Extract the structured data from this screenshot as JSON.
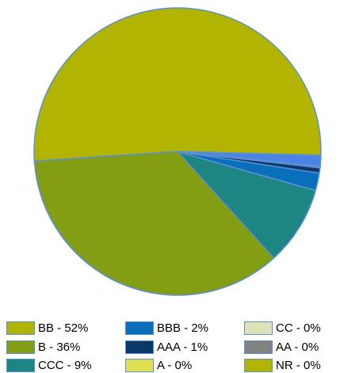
{
  "chart_data": {
    "type": "pie",
    "title": "",
    "legend_position": "bottom",
    "start_angle_deg": -1.5,
    "direction": "counterclockwise",
    "slice_border_color": "#5b8fd6",
    "slices": [
      {
        "label": "BB - 52%",
        "name": "BB",
        "value": 52,
        "color": "#b1b400"
      },
      {
        "label": "B - 36%",
        "name": "B",
        "value": 36,
        "color": "#849e14"
      },
      {
        "label": "CCC - 9%",
        "name": "CCC",
        "value": 9,
        "color": "#1d8582"
      },
      {
        "label": "BBB - 2%",
        "name": "BBB",
        "value": 2,
        "color": "#0a6fba"
      },
      {
        "label": "AAA - 1%",
        "name": "AAA",
        "value": 0.6,
        "color": "#0c3866"
      },
      {
        "label": "A - 0%",
        "name": "A",
        "value": 0.05,
        "color": "#dfdf52"
      },
      {
        "label": "CC - 0%",
        "name": "CC",
        "value": 0.05,
        "color": "#dfe2b5"
      },
      {
        "label": "AA - 0%",
        "name": "AA",
        "value": 0.05,
        "color": "#828282"
      },
      {
        "label": "NR - 0%",
        "name": "NR",
        "value": 0.05,
        "color": "#b1b400"
      },
      {
        "label": "",
        "name": "",
        "value": 1.2,
        "color": "#4a84e6"
      }
    ],
    "legend": [
      {
        "label": "BB - 52%",
        "color": "#b1b400"
      },
      {
        "label": "BBB - 2%",
        "color": "#0a6fba"
      },
      {
        "label": "CC - 0%",
        "color": "#dfe2b5"
      },
      {
        "label": "B - 36%",
        "color": "#849e14"
      },
      {
        "label": "AAA - 1%",
        "color": "#0c3866"
      },
      {
        "label": "AA - 0%",
        "color": "#828282"
      },
      {
        "label": "CCC - 9%",
        "color": "#1d8582"
      },
      {
        "label": "A - 0%",
        "color": "#dfdf52"
      },
      {
        "label": "NR - 0%",
        "color": "#b1b400"
      }
    ]
  }
}
